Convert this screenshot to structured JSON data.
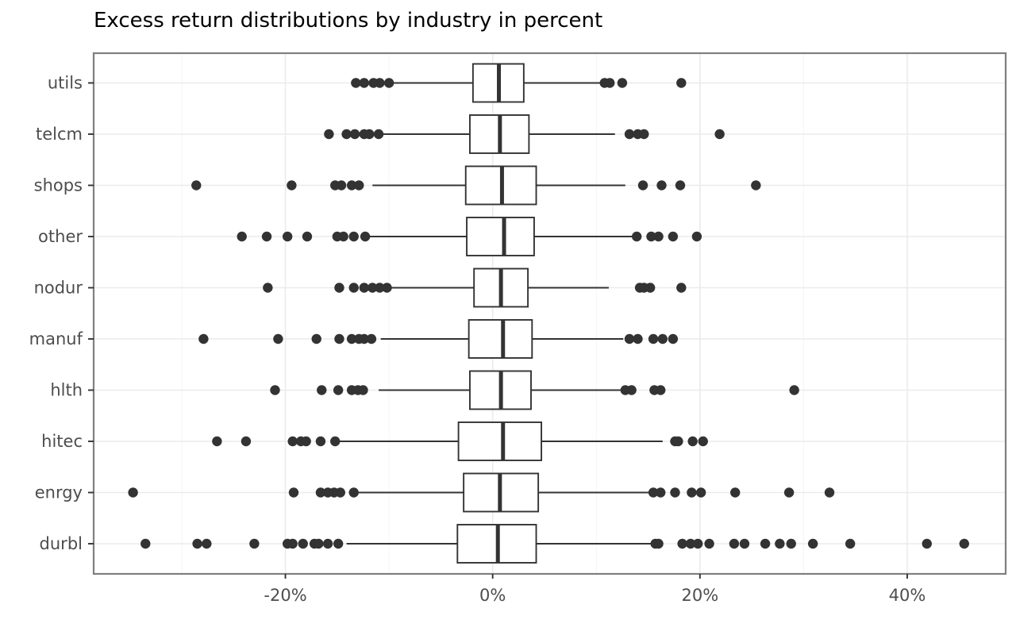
{
  "chart_data": {
    "type": "boxplot",
    "orientation": "horizontal",
    "title": "Excess return distributions by industry in percent",
    "xlabel": "",
    "ylabel": "",
    "xlim": [
      -38.5,
      49.5
    ],
    "x_ticks": [
      {
        "value": -20,
        "label": "-20%"
      },
      {
        "value": 0,
        "label": "0%"
      },
      {
        "value": 20,
        "label": "20%"
      },
      {
        "value": 40,
        "label": "40%"
      }
    ],
    "grid": true,
    "categories": [
      "durbl",
      "enrgy",
      "hitec",
      "hlth ",
      "manuf",
      "nodur",
      "other",
      "shops",
      "telcm",
      "utils"
    ],
    "series": [
      {
        "category": "durbl",
        "min": -14.1,
        "q1": -3.4,
        "median": 0.5,
        "q3": 4.2,
        "max": 15.5,
        "outliers": [
          -33.5,
          -28.5,
          -27.6,
          -23.0,
          -19.8,
          -19.3,
          -18.3,
          -17.2,
          -16.8,
          -15.9,
          -14.9,
          15.7,
          16.0,
          18.3,
          19.1,
          19.8,
          20.9,
          23.3,
          24.3,
          26.3,
          27.7,
          28.8,
          30.9,
          34.5,
          41.9,
          45.5
        ]
      },
      {
        "category": "enrgy",
        "min": -13.2,
        "q1": -2.8,
        "median": 0.7,
        "q3": 4.4,
        "max": 15.3,
        "outliers": [
          -34.7,
          -19.2,
          -16.6,
          -15.9,
          -15.3,
          -14.7,
          -13.4,
          15.5,
          16.2,
          17.6,
          19.2,
          20.1,
          23.4,
          28.6,
          32.5
        ]
      },
      {
        "category": "hitec",
        "min": -15.0,
        "q1": -3.3,
        "median": 1.0,
        "q3": 4.7,
        "max": 16.4,
        "outliers": [
          -26.6,
          -23.8,
          -19.3,
          -18.5,
          -18.0,
          -16.6,
          -15.2,
          17.6,
          17.9,
          19.3,
          20.3
        ]
      },
      {
        "category": "hlth ",
        "min": -11.0,
        "q1": -2.2,
        "median": 0.8,
        "q3": 3.7,
        "max": 12.5,
        "outliers": [
          -21.0,
          -16.5,
          -14.9,
          -13.6,
          -13.0,
          -12.5,
          12.8,
          13.4,
          15.6,
          16.2,
          29.1
        ]
      },
      {
        "category": "manuf",
        "min": -10.8,
        "q1": -2.3,
        "median": 1.0,
        "q3": 3.8,
        "max": 12.6,
        "outliers": [
          -27.9,
          -20.7,
          -17.0,
          -14.8,
          -13.6,
          -12.9,
          -12.4,
          -11.7,
          13.2,
          14.0,
          15.5,
          16.4,
          17.4
        ]
      },
      {
        "category": "nodur",
        "min": -9.8,
        "q1": -1.8,
        "median": 0.8,
        "q3": 3.4,
        "max": 11.2,
        "outliers": [
          -21.7,
          -14.8,
          -13.4,
          -12.4,
          -11.6,
          -10.9,
          -10.2,
          14.2,
          14.6,
          15.2,
          18.2
        ]
      },
      {
        "category": "other",
        "min": -12.3,
        "q1": -2.5,
        "median": 1.1,
        "q3": 4.0,
        "max": 13.9,
        "outliers": [
          -24.2,
          -21.8,
          -19.8,
          -17.9,
          -15.0,
          -14.4,
          -13.4,
          -12.3,
          13.9,
          15.3,
          16.0,
          17.4,
          19.7
        ]
      },
      {
        "category": "shops",
        "min": -11.6,
        "q1": -2.6,
        "median": 0.9,
        "q3": 4.2,
        "max": 12.8,
        "outliers": [
          -28.6,
          -19.4,
          -15.2,
          -14.6,
          -13.6,
          -12.9,
          14.5,
          16.3,
          18.1,
          25.4
        ]
      },
      {
        "category": "telcm",
        "min": -10.8,
        "q1": -2.2,
        "median": 0.7,
        "q3": 3.5,
        "max": 11.8,
        "outliers": [
          -15.8,
          -14.1,
          -13.3,
          -12.4,
          -11.9,
          -11.0,
          13.2,
          14.0,
          14.6,
          21.9
        ]
      },
      {
        "category": "utils",
        "min": -9.6,
        "q1": -1.9,
        "median": 0.6,
        "q3": 3.0,
        "max": 10.5,
        "outliers": [
          -13.2,
          -12.4,
          -11.5,
          -10.9,
          -10.0,
          10.8,
          11.3,
          12.5,
          18.2
        ]
      }
    ]
  }
}
